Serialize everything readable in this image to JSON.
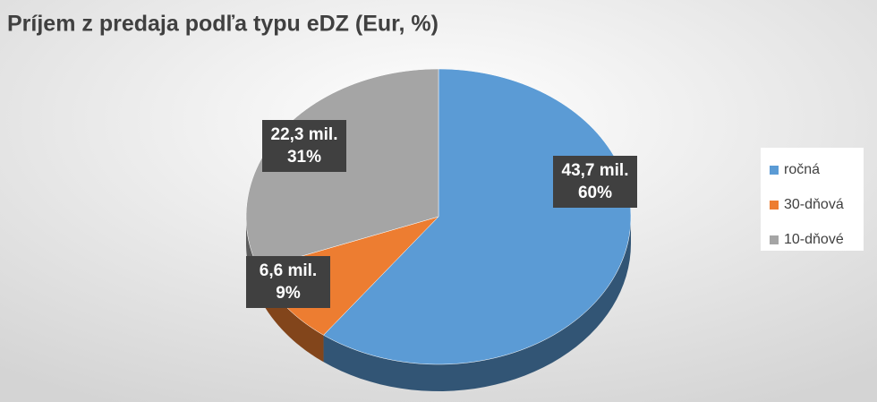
{
  "chart_data": {
    "type": "pie",
    "title": "Príjem z predaja podľa typu eDZ (Eur, %)",
    "categories": [
      "ročná",
      "30-dňová",
      "10-dňové"
    ],
    "values": [
      43.7,
      6.6,
      22.3
    ],
    "value_labels": [
      "43,7 mil.",
      "6,6 mil.",
      "22,3 mil."
    ],
    "percents": [
      60,
      9,
      31
    ],
    "percent_labels": [
      "60%",
      "9%",
      "31%"
    ],
    "colors": [
      "#5b9bd5",
      "#ed7d31",
      "#a5a5a5"
    ],
    "legend": "right"
  }
}
